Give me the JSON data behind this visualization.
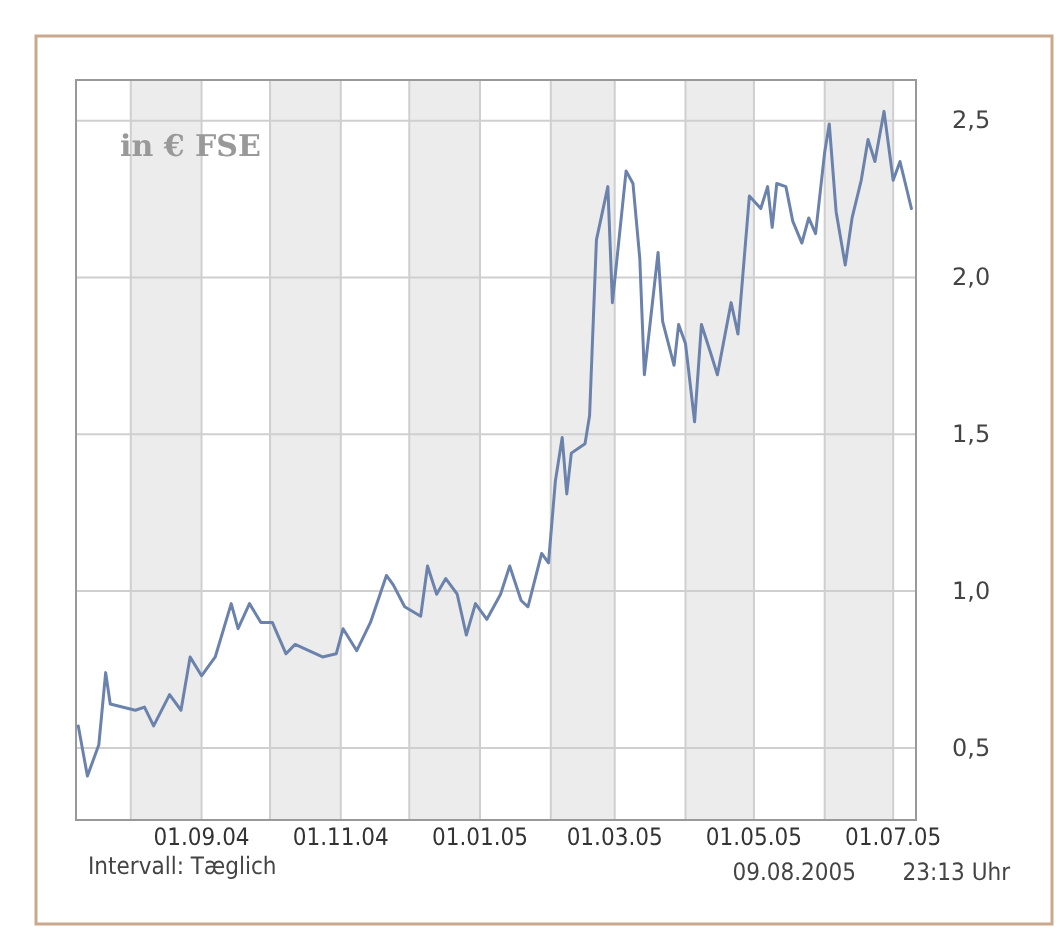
{
  "chart_data": {
    "type": "line",
    "x": [
      "2004-07-09",
      "2004-07-13",
      "2004-07-18",
      "2004-07-21",
      "2004-07-23",
      "2004-08-03",
      "2004-08-07",
      "2004-08-11",
      "2004-08-18",
      "2004-08-23",
      "2004-08-27",
      "2004-09-01",
      "2004-09-07",
      "2004-09-14",
      "2004-09-17",
      "2004-09-22",
      "2004-09-27",
      "2004-10-02",
      "2004-10-08",
      "2004-10-12",
      "2004-10-24",
      "2004-10-30",
      "2004-11-02",
      "2004-11-08",
      "2004-11-14",
      "2004-11-21",
      "2004-11-24",
      "2004-11-29",
      "2004-12-06",
      "2004-12-09",
      "2004-12-13",
      "2004-12-17",
      "2004-12-22",
      "2004-12-26",
      "2004-12-30",
      "2005-01-04",
      "2005-01-10",
      "2005-01-14",
      "2005-01-19",
      "2005-01-22",
      "2005-01-28",
      "2005-01-31",
      "2005-02-03",
      "2005-02-06",
      "2005-02-08",
      "2005-02-10",
      "2005-02-16",
      "2005-02-18",
      "2005-02-21",
      "2005-02-26",
      "2005-02-28",
      "2005-03-06",
      "2005-03-09",
      "2005-03-12",
      "2005-03-14",
      "2005-03-20",
      "2005-03-22",
      "2005-03-27",
      "2005-03-29",
      "2005-04-01",
      "2005-04-05",
      "2005-04-08",
      "2005-04-12",
      "2005-04-15",
      "2005-04-21",
      "2005-04-24",
      "2005-04-29",
      "2005-05-04",
      "2005-05-07",
      "2005-05-09",
      "2005-05-11",
      "2005-05-15",
      "2005-05-18",
      "2005-05-22",
      "2005-05-25",
      "2005-05-28",
      "2005-06-01",
      "2005-06-03",
      "2005-06-06",
      "2005-06-10",
      "2005-06-13",
      "2005-06-17",
      "2005-06-20",
      "2005-06-23",
      "2005-06-27",
      "2005-07-01",
      "2005-07-04",
      "2005-07-07",
      "2005-07-09"
    ],
    "series": [
      {
        "color": "#6b82ac",
        "values": [
          0.57,
          0.41,
          0.51,
          0.74,
          0.64,
          0.62,
          0.63,
          0.57,
          0.67,
          0.62,
          0.79,
          0.73,
          0.79,
          0.96,
          0.88,
          0.96,
          0.9,
          0.9,
          0.8,
          0.83,
          0.79,
          0.8,
          0.88,
          0.81,
          0.9,
          1.05,
          1.02,
          0.95,
          0.92,
          1.08,
          0.99,
          1.04,
          0.99,
          0.86,
          0.96,
          0.91,
          0.99,
          1.08,
          0.97,
          0.95,
          1.12,
          1.09,
          1.35,
          1.49,
          1.31,
          1.44,
          1.47,
          1.56,
          2.12,
          2.29,
          1.92,
          2.34,
          2.3,
          2.06,
          1.69,
          2.08,
          1.86,
          1.72,
          1.85,
          1.79,
          1.54,
          1.85,
          1.76,
          1.69,
          1.92,
          1.82,
          2.26,
          2.22,
          2.29,
          2.16,
          2.3,
          2.29,
          2.18,
          2.11,
          2.19,
          2.14,
          2.4,
          2.49,
          2.21,
          2.04,
          2.19,
          2.31,
          2.44,
          2.37,
          2.53,
          2.31,
          2.37,
          2.28,
          2.22
        ]
      }
    ],
    "xlim": [
      "2004-07-08",
      "2005-07-11"
    ],
    "xticks": [
      {
        "value": "2004-08-01",
        "label": null
      },
      {
        "value": "2004-09-01",
        "label": "01.09.04"
      },
      {
        "value": "2004-10-01",
        "label": null
      },
      {
        "value": "2004-11-01",
        "label": "01.11.04"
      },
      {
        "value": "2004-12-01",
        "label": null
      },
      {
        "value": "2005-01-01",
        "label": "01.01.05"
      },
      {
        "value": "2005-02-01",
        "label": null
      },
      {
        "value": "2005-03-01",
        "label": "01.03.05"
      },
      {
        "value": "2005-04-01",
        "label": null
      },
      {
        "value": "2005-05-01",
        "label": "01.05.05"
      },
      {
        "value": "2005-06-01",
        "label": null
      },
      {
        "value": "2005-07-01",
        "label": "01.07.05"
      }
    ],
    "ylim": [
      0.27,
      2.63
    ],
    "yticks": [
      {
        "value": 0.5,
        "label": "0,5"
      },
      {
        "value": 1.0,
        "label": "1,0"
      },
      {
        "value": 1.5,
        "label": "1,5"
      },
      {
        "value": 2.0,
        "label": "2,0"
      },
      {
        "value": 2.5,
        "label": "2,5"
      }
    ],
    "grid": true,
    "bands": [
      {
        "axis": "x",
        "from": "2004-08-01",
        "to": "2004-09-01",
        "color": "#ececec"
      },
      {
        "axis": "x",
        "from": "2004-10-01",
        "to": "2004-11-01",
        "color": "#ececec"
      },
      {
        "axis": "x",
        "from": "2004-12-01",
        "to": "2005-01-01",
        "color": "#ececec"
      },
      {
        "axis": "x",
        "from": "2005-02-01",
        "to": "2005-03-01",
        "color": "#ececec"
      },
      {
        "axis": "x",
        "from": "2005-04-01",
        "to": "2005-05-01",
        "color": "#ececec"
      },
      {
        "axis": "x",
        "from": "2005-06-01",
        "to": "2005-07-01",
        "color": "#ececec"
      }
    ],
    "annotations": [
      "in € FSE",
      "Intervall: Tæglich",
      "09.08.2005",
      "23:13 Uhr"
    ]
  }
}
